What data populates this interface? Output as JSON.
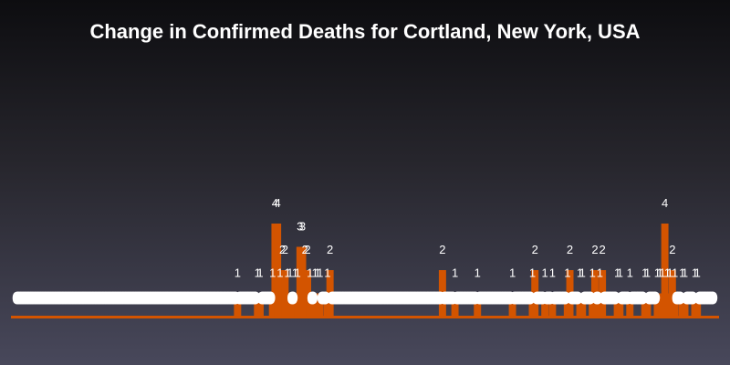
{
  "chart_data": {
    "type": "bar",
    "title": "Change in Confirmed Deaths for Cortland, New York, USA",
    "xlabel": "",
    "ylabel": "",
    "ylim": [
      0,
      4
    ],
    "grid": false,
    "legend": "none",
    "bar_color": "#d35400",
    "label_color": "#ffffff",
    "values": [
      0,
      0,
      0,
      0,
      0,
      0,
      0,
      0,
      0,
      0,
      0,
      0,
      0,
      0,
      0,
      0,
      0,
      0,
      0,
      0,
      0,
      0,
      0,
      0,
      0,
      0,
      0,
      0,
      0,
      0,
      0,
      0,
      0,
      0,
      0,
      0,
      0,
      0,
      0,
      0,
      0,
      0,
      0,
      0,
      0,
      0,
      0,
      0,
      0,
      0,
      0,
      0,
      0,
      0,
      0,
      0,
      0,
      0,
      0,
      0,
      0,
      0,
      0,
      0,
      0,
      0,
      0,
      0,
      0,
      0,
      0,
      0,
      0,
      0,
      0,
      0,
      0,
      0,
      0,
      0,
      0,
      0,
      0,
      0,
      0,
      0,
      0,
      0,
      1,
      0,
      0,
      0,
      0,
      0,
      0,
      0,
      1,
      1,
      0,
      0,
      0,
      0,
      1,
      4,
      4,
      1,
      2,
      2,
      1,
      1,
      0,
      1,
      1,
      3,
      3,
      2,
      2,
      1,
      0,
      1,
      1,
      1,
      0,
      0,
      1,
      2,
      0,
      0,
      0,
      0,
      0,
      0,
      0,
      0,
      0,
      0,
      0,
      0,
      0,
      0,
      0,
      0,
      0,
      0,
      0,
      0,
      0,
      0,
      0,
      0,
      0,
      0,
      0,
      0,
      0,
      0,
      0,
      0,
      0,
      0,
      0,
      0,
      0,
      0,
      0,
      0,
      0,
      0,
      0,
      0,
      2,
      0,
      0,
      0,
      0,
      1,
      0,
      0,
      0,
      0,
      0,
      0,
      0,
      0,
      1,
      0,
      0,
      0,
      0,
      0,
      0,
      0,
      0,
      0,
      0,
      0,
      0,
      0,
      1,
      0,
      0,
      0,
      0,
      0,
      0,
      0,
      1,
      2,
      0,
      0,
      0,
      1,
      0,
      0,
      1,
      0,
      0,
      0,
      0,
      0,
      1,
      2,
      0,
      0,
      0,
      1,
      1,
      0,
      0,
      0,
      1,
      2,
      0,
      1,
      2,
      0,
      0,
      0,
      0,
      0,
      1,
      1,
      0,
      0,
      0,
      1,
      0,
      0,
      0,
      0,
      0,
      1,
      1,
      0,
      0,
      0,
      1,
      1,
      1,
      4,
      1,
      1,
      2,
      1,
      0,
      0,
      1,
      1,
      0,
      0,
      0,
      1,
      1,
      0,
      0,
      0,
      0,
      0,
      0
    ]
  }
}
